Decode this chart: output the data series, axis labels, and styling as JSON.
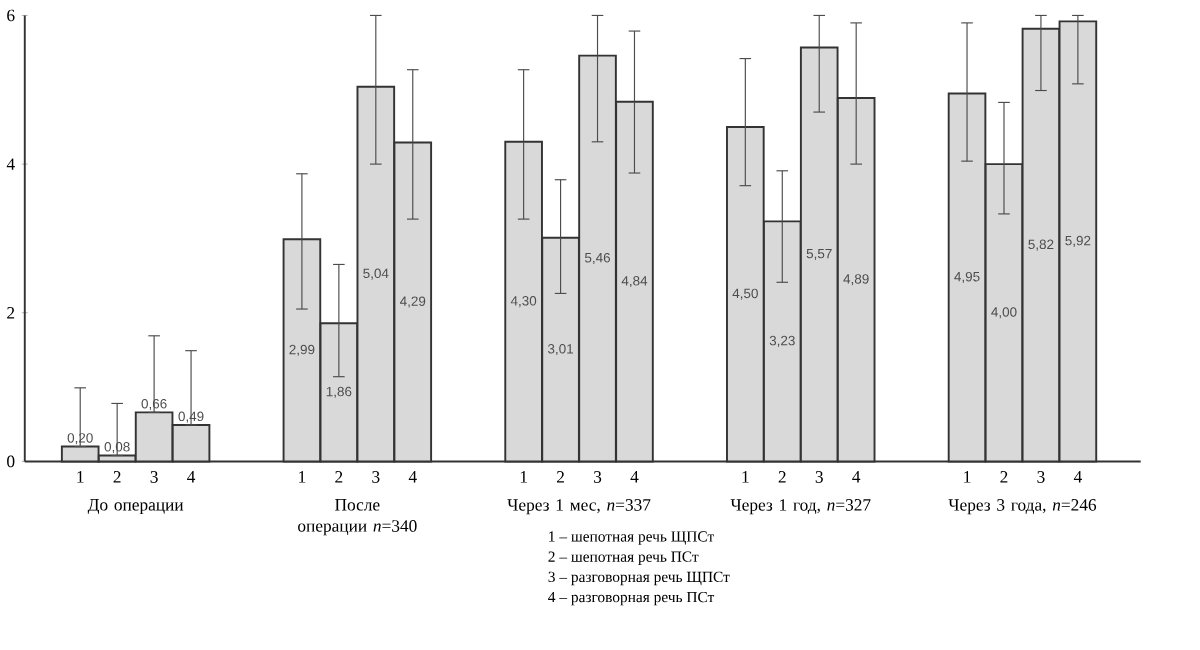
{
  "chart_data": {
    "type": "bar",
    "categories": [
      "До операции",
      "После операции *n*=340",
      "Через 1 мес, *n*=337",
      "Через 1 год, *n*=327",
      "Через 3 года, *n*=246"
    ],
    "series": [
      {
        "name": "1",
        "color": "#d9d9d9",
        "values": [
          0.2,
          2.99,
          4.3,
          4.5,
          4.95
        ],
        "value_labels": [
          "0,20",
          "2,99",
          "4,30",
          "4,50",
          "4,95"
        ],
        "errors": [
          [
            0.2,
            0.99
          ],
          [
            2.05,
            3.87
          ],
          [
            3.26,
            5.27
          ],
          [
            3.71,
            5.42
          ],
          [
            4.04,
            5.9
          ]
        ]
      },
      {
        "name": "2",
        "color": "#d9d9d9",
        "values": [
          0.08,
          1.86,
          3.01,
          3.23,
          4.0
        ],
        "value_labels": [
          "0,08",
          "1,86",
          "3,01",
          "3,23",
          "4,00"
        ],
        "errors": [
          [
            0.08,
            0.78
          ],
          [
            1.14,
            2.65
          ],
          [
            2.26,
            3.79
          ],
          [
            2.41,
            3.91
          ],
          [
            3.33,
            4.83
          ]
        ]
      },
      {
        "name": "3",
        "color": "#d9d9d9",
        "values": [
          0.66,
          5.04,
          5.46,
          5.57,
          5.82
        ],
        "value_labels": [
          "0,66",
          "5,04",
          "5,46",
          "5,57",
          "5,82"
        ],
        "errors": [
          [
            0.66,
            1.69
          ],
          [
            4.0,
            6.0
          ],
          [
            4.3,
            6.0
          ],
          [
            4.7,
            6.0
          ],
          [
            4.99,
            6.0
          ]
        ]
      },
      {
        "name": "4",
        "color": "#d9d9d9",
        "values": [
          0.49,
          4.29,
          4.84,
          4.89,
          5.92
        ],
        "value_labels": [
          "0,49",
          "4,29",
          "4,84",
          "4,89",
          "5,92"
        ],
        "errors": [
          [
            0.49,
            1.49
          ],
          [
            3.26,
            5.27
          ],
          [
            3.88,
            5.79
          ],
          [
            4.0,
            5.9
          ],
          [
            5.08,
            6.0
          ]
        ]
      }
    ],
    "ylim": [
      0,
      6
    ],
    "yticks": [
      0,
      2,
      4,
      6
    ],
    "annotations": [
      "1 – шепотная речь ЩПСт",
      "2 – шепотная речь ПСт",
      "3 – разговорная речь ЩПСт",
      "4 – разговорная речь ПСт"
    ]
  }
}
